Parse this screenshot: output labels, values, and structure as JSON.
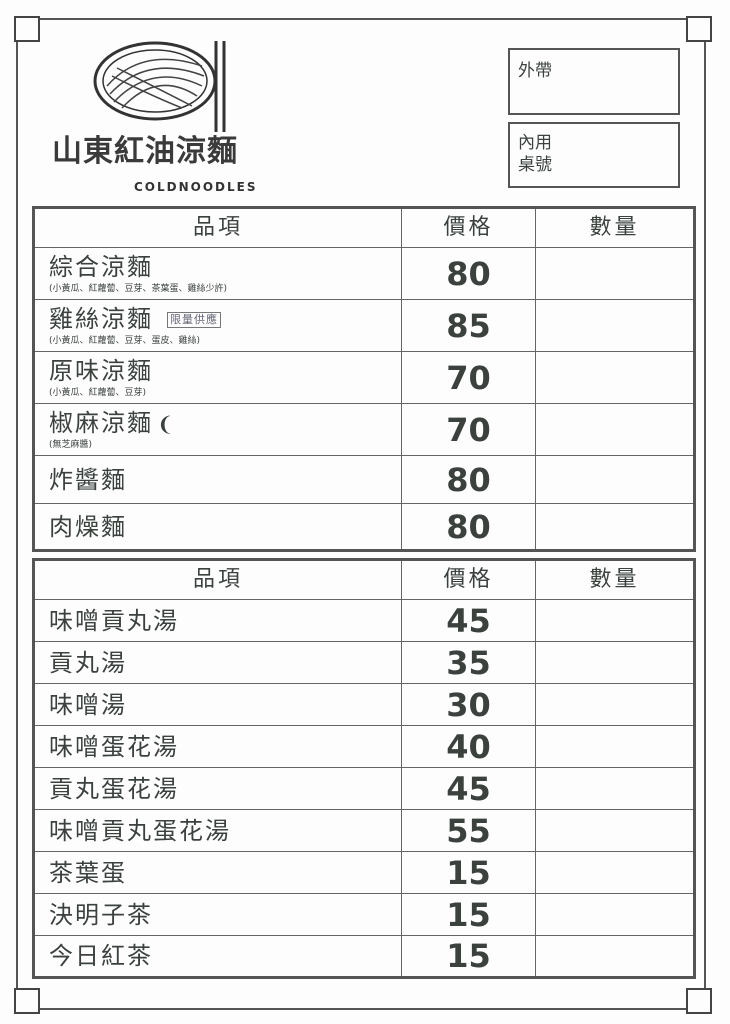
{
  "brand": {
    "name": "山東紅油涼麵",
    "english": "COLDNOODLES"
  },
  "order_boxes": {
    "takeout": "外帶",
    "dine_in_line1": "內用",
    "dine_in_line2": "桌號"
  },
  "headers": {
    "item": "品項",
    "price": "價格",
    "qty": "數量"
  },
  "noodles": [
    {
      "name": "綜合涼麵",
      "note": "(小黃瓜、紅蘿蔔、豆芽、茶葉蛋、雞絲少許)",
      "price": "80"
    },
    {
      "name": "雞絲涼麵",
      "note": "(小黃瓜、紅蘿蔔、豆芽、蛋皮、雞絲)",
      "price": "85",
      "stamp": "限量供應"
    },
    {
      "name": "原味涼麵",
      "note": "(小黃瓜、紅蘿蔔、豆芽)",
      "price": "70"
    },
    {
      "name": "椒麻涼麵",
      "note": "(無芝麻醬)",
      "price": "70",
      "icon": "chili-pepper-icon"
    },
    {
      "name": "炸醬麵",
      "price": "80"
    },
    {
      "name": "肉燥麵",
      "price": "80"
    }
  ],
  "soups": [
    {
      "name": "味噌貢丸湯",
      "price": "45"
    },
    {
      "name": "貢丸湯",
      "price": "35"
    },
    {
      "name": "味噌湯",
      "price": "30"
    },
    {
      "name": "味噌蛋花湯",
      "price": "40"
    },
    {
      "name": "貢丸蛋花湯",
      "price": "45"
    },
    {
      "name": "味噌貢丸蛋花湯",
      "price": "55"
    },
    {
      "name": "茶葉蛋",
      "price": "15"
    },
    {
      "name": "決明子茶",
      "price": "15"
    },
    {
      "name": "今日紅茶",
      "price": "15"
    }
  ]
}
